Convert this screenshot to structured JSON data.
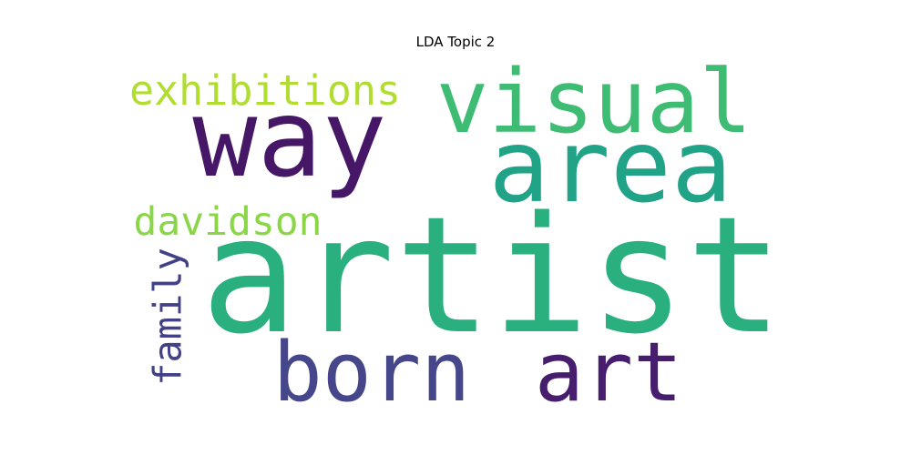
{
  "chart_data": {
    "type": "wordcloud",
    "title": "LDA Topic 2",
    "words": [
      {
        "text": "artist",
        "color": "#2aaf7f"
      },
      {
        "text": "way",
        "color": "#461667"
      },
      {
        "text": "area",
        "color": "#20a386"
      },
      {
        "text": "visual",
        "color": "#3fbc73"
      },
      {
        "text": "born",
        "color": "#46468b"
      },
      {
        "text": "art",
        "color": "#471d6e"
      },
      {
        "text": "exhibitions",
        "color": "#b0dd2f"
      },
      {
        "text": "davidson",
        "color": "#8ad647"
      },
      {
        "text": "family",
        "color": "#424086"
      }
    ]
  }
}
